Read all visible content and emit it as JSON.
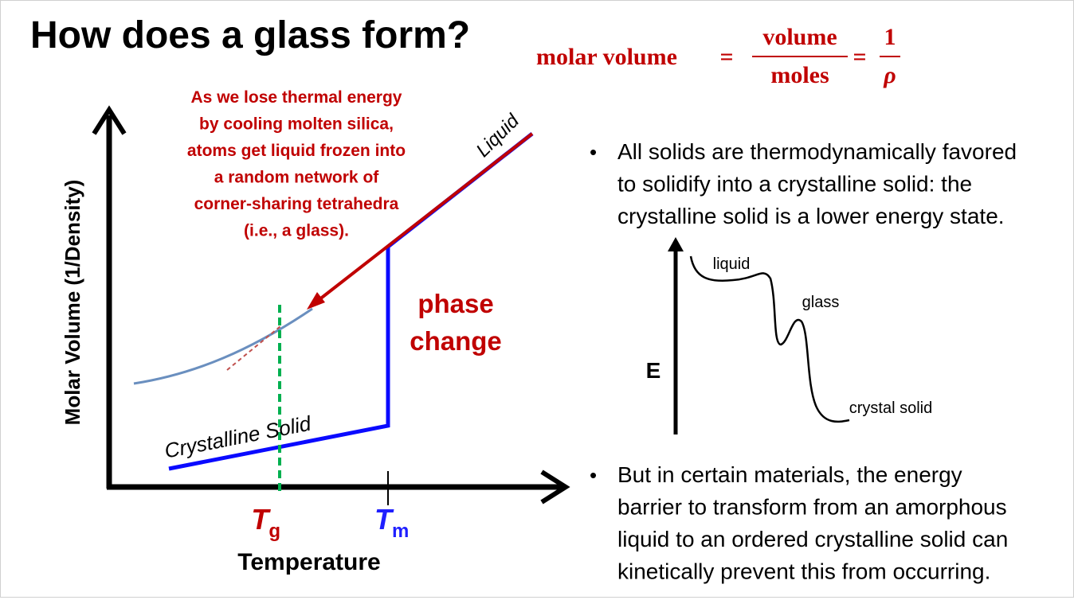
{
  "title": "How does a glass form?",
  "formula": {
    "lhs": "molar volume",
    "eq1": "=",
    "numerator": "volume",
    "denominator": "moles",
    "eq2": "=",
    "one": "1",
    "rho": "ρ"
  },
  "graph": {
    "annotation": [
      "As we lose thermal energy",
      "by cooling molten silica,",
      "atoms get liquid frozen into",
      "a random network of",
      "corner-sharing tetrahedra",
      "(i.e., a glass)."
    ],
    "liquid_label": "Liquid",
    "crystal_label": "Crystalline Solid",
    "phase_change": [
      "phase",
      "change"
    ],
    "tg": {
      "T": "T",
      "sub": "g"
    },
    "tm": {
      "T": "T",
      "sub": "m"
    },
    "x_label": "Temperature",
    "y_label": "Molar Volume (1/Density)"
  },
  "bullets": [
    {
      "lines": [
        "All solids are thermodynamically favored",
        "to solidify into a crystalline solid: the",
        "crystalline solid is a lower energy state."
      ]
    },
    {
      "lines": [
        "But in certain materials, the energy",
        "barrier to transform from an amorphous",
        "liquid to an ordered crystalline solid can",
        "kinetically prevent this from occurring."
      ]
    }
  ],
  "bullet_symbol": "•",
  "energy": {
    "axis_label": "E",
    "liquid": "liquid",
    "glass": "glass",
    "crystal": "crystal solid"
  }
}
